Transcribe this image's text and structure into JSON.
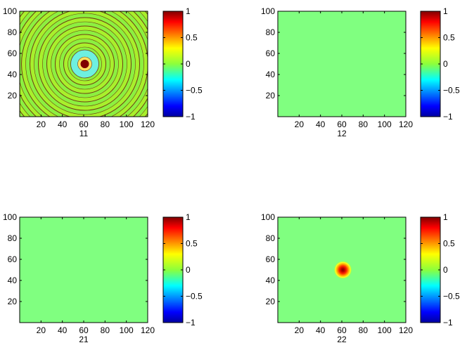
{
  "chart_data": [
    {
      "type": "heatmap",
      "title": "",
      "xlabel": "11",
      "ylabel": "",
      "xlim": [
        0,
        120
      ],
      "ylim": [
        0,
        100
      ],
      "xticks": [
        20,
        40,
        60,
        80,
        100,
        120
      ],
      "yticks": [
        20,
        40,
        60,
        80,
        100
      ],
      "clim": [
        -1,
        1
      ],
      "colorbar_ticks": [
        1,
        0.5,
        0,
        -0.5,
        -1
      ],
      "colorbar_tick_labels": [
        "1",
        "0.5",
        "0",
        "−0.5",
        "−1"
      ],
      "field": "concentric ripple",
      "peak": {
        "x": 61,
        "y": 50,
        "value": 1
      },
      "background_value": 0
    },
    {
      "type": "heatmap",
      "title": "",
      "xlabel": "12",
      "ylabel": "",
      "xlim": [
        0,
        120
      ],
      "ylim": [
        0,
        100
      ],
      "xticks": [
        20,
        40,
        60,
        80,
        100,
        120
      ],
      "yticks": [
        20,
        40,
        60,
        80,
        100
      ],
      "clim": [
        -1,
        1
      ],
      "colorbar_ticks": [
        1,
        0.5,
        0,
        -0.5,
        -1
      ],
      "colorbar_tick_labels": [
        "1",
        "0.5",
        "0",
        "−0.5",
        "−1"
      ],
      "field": "uniform",
      "background_value": 0
    },
    {
      "type": "heatmap",
      "title": "",
      "xlabel": "21",
      "ylabel": "",
      "xlim": [
        0,
        120
      ],
      "ylim": [
        0,
        100
      ],
      "xticks": [
        20,
        40,
        60,
        80,
        100,
        120
      ],
      "yticks": [
        20,
        40,
        60,
        80,
        100
      ],
      "clim": [
        -1,
        1
      ],
      "colorbar_ticks": [
        1,
        0.5,
        0,
        -0.5,
        -1
      ],
      "colorbar_tick_labels": [
        "1",
        "0.5",
        "0",
        "−0.5",
        "−1"
      ],
      "field": "uniform",
      "background_value": 0
    },
    {
      "type": "heatmap",
      "title": "",
      "xlabel": "22",
      "ylabel": "",
      "xlim": [
        0,
        120
      ],
      "ylim": [
        0,
        100
      ],
      "xticks": [
        20,
        40,
        60,
        80,
        100,
        120
      ],
      "yticks": [
        20,
        40,
        60,
        80,
        100
      ],
      "clim": [
        -1,
        1
      ],
      "colorbar_ticks": [
        1,
        0.5,
        0,
        -0.5,
        -1
      ],
      "colorbar_tick_labels": [
        "1",
        "0.5",
        "0",
        "−0.5",
        "−1"
      ],
      "field": "gaussian spot",
      "peak": {
        "x": 61,
        "y": 50,
        "value": 1
      },
      "background_value": 0
    }
  ],
  "colormap": "jet"
}
